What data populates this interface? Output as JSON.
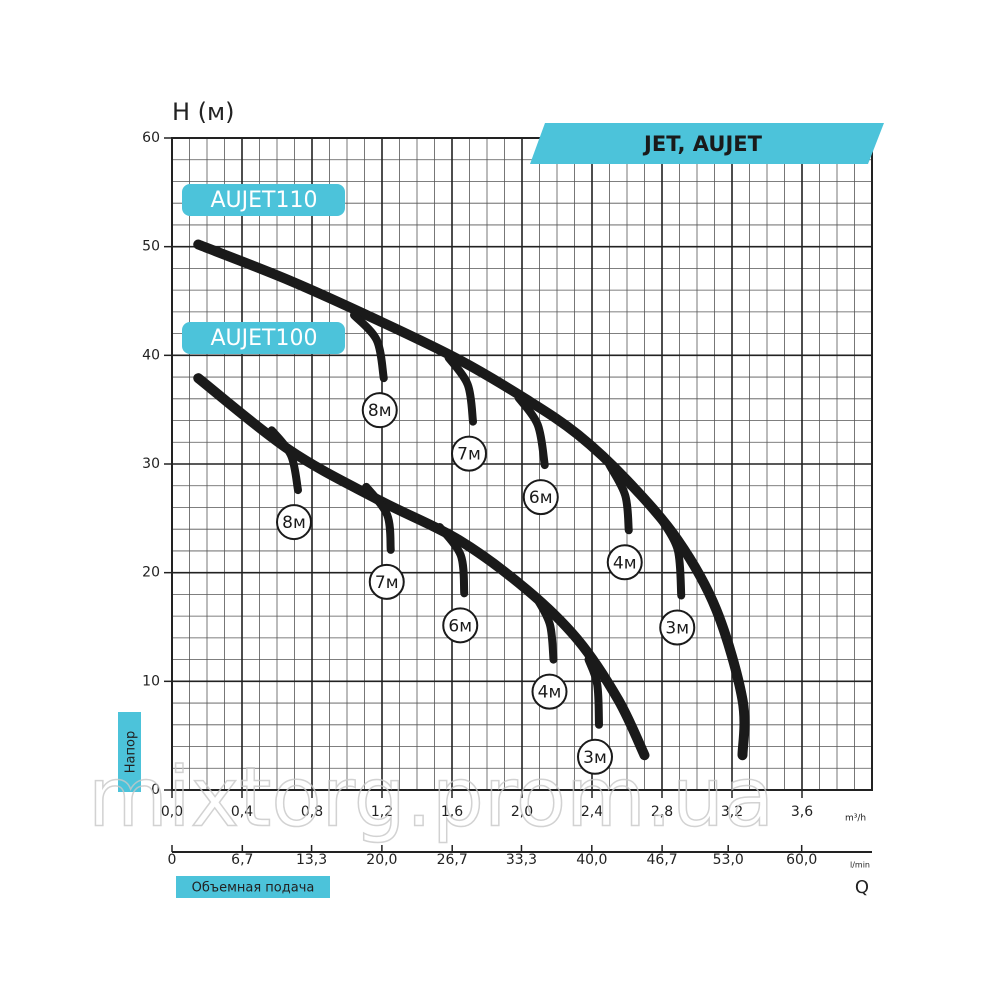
{
  "chart_data": {
    "type": "line",
    "title": "JET, AUJET",
    "y_label": "H (м)",
    "y_axis_title": "Напор",
    "x_axis_title": "Объемная подача",
    "x_symbol": "Q",
    "x_unit": "m³/h",
    "x2_unit": "l/min",
    "watermark": "mixtorg.prom.ua",
    "xlim": [
      0,
      4.0
    ],
    "xticks": [
      {
        "value": 0,
        "label": "0,0"
      },
      {
        "value": 0.4,
        "label": "0,4"
      },
      {
        "value": 0.8,
        "label": "0,8"
      },
      {
        "value": 1.2,
        "label": "1,2"
      },
      {
        "value": 1.6,
        "label": "1,6"
      },
      {
        "value": 2.0,
        "label": "2,0"
      },
      {
        "value": 2.4,
        "label": "2,4"
      },
      {
        "value": 2.8,
        "label": "2,8"
      },
      {
        "value": 3.2,
        "label": "3,2"
      },
      {
        "value": 3.6,
        "label": "3,6"
      }
    ],
    "x2lim": [
      0,
      66.7
    ],
    "x2ticks": [
      0,
      {
        "value": 6.7,
        "label": "6,7"
      },
      {
        "value": 13.3,
        "label": "13,3"
      },
      {
        "value": 20.0,
        "label": "20,0"
      },
      {
        "value": 26.7,
        "label": "26,7"
      },
      {
        "value": 33.3,
        "label": "33,3"
      },
      {
        "value": 40.0,
        "label": "40,0"
      },
      {
        "value": 46.7,
        "label": "46,7"
      },
      {
        "value": 53.0,
        "label": "53,0"
      },
      {
        "value": 60.0,
        "label": "60,0"
      }
    ],
    "ylim": [
      0,
      60
    ],
    "yticks": [
      0,
      10,
      20,
      30,
      40,
      50,
      60
    ],
    "grid": true,
    "x_minor_step": 0.1,
    "y_minor_step": 2,
    "accent_color": "#4cc3da",
    "series": [
      {
        "name": "AUJET110",
        "color": "#1a1a1a",
        "x": [
          0.15,
          0.67,
          1.18,
          1.64,
          2.03,
          2.32,
          2.6,
          2.89,
          3.11,
          3.26,
          3.26
        ],
        "values": [
          50.2,
          46.9,
          43.2,
          39.6,
          35.9,
          32.7,
          28.5,
          23.0,
          16.6,
          8.3,
          3.2
        ],
        "branches": [
          {
            "label": "8м",
            "x": [
              1.04,
              1.17,
              1.21
            ],
            "values": [
              43.7,
              41.4,
              37.9
            ]
          },
          {
            "label": "7м",
            "x": [
              1.58,
              1.69,
              1.72
            ],
            "values": [
              39.8,
              37.3,
              33.9
            ]
          },
          {
            "label": "6м",
            "x": [
              1.98,
              2.09,
              2.13
            ],
            "values": [
              36.1,
              33.6,
              29.9
            ]
          },
          {
            "label": "4м",
            "x": [
              2.5,
              2.59,
              2.61
            ],
            "values": [
              29.9,
              27.1,
              23.9
            ]
          },
          {
            "label": "3м",
            "x": [
              2.8,
              2.89,
              2.91
            ],
            "values": [
              24.8,
              22.1,
              17.9
            ]
          }
        ]
      },
      {
        "name": "AUJET100",
        "color": "#1a1a1a",
        "x": [
          0.15,
          0.67,
          1.18,
          1.64,
          2.03,
          2.32,
          2.55,
          2.7
        ],
        "values": [
          37.9,
          31.3,
          26.7,
          23.0,
          18.4,
          13.8,
          8.3,
          3.2
        ],
        "branches": [
          {
            "label": "8м",
            "x": [
              0.57,
              0.68,
              0.72
            ],
            "values": [
              33.1,
              30.8,
              27.6
            ]
          },
          {
            "label": "7м",
            "x": [
              1.11,
              1.23,
              1.25
            ],
            "values": [
              27.9,
              25.3,
              22.1
            ]
          },
          {
            "label": "6м",
            "x": [
              1.53,
              1.65,
              1.67
            ],
            "values": [
              24.2,
              21.6,
              18.1
            ]
          },
          {
            "label": "4м",
            "x": [
              2.09,
              2.16,
              2.18
            ],
            "values": [
              17.5,
              15.2,
              12.0
            ]
          },
          {
            "label": "3м",
            "x": [
              2.38,
              2.43,
              2.44
            ],
            "values": [
              12.0,
              9.7,
              6.0
            ]
          }
        ]
      }
    ]
  }
}
